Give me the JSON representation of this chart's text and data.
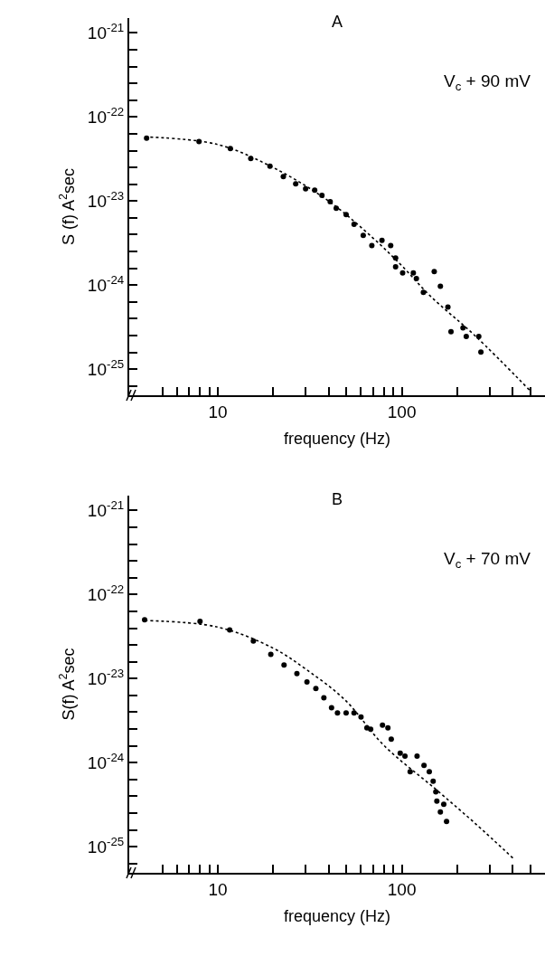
{
  "chart_data": [
    {
      "type": "scatter",
      "title": "A",
      "annotations": [
        "V$_{c}$ + 90 mV"
      ],
      "xlabel": "frequency (Hz)",
      "ylabel": "S (f) A$^{2}$sec",
      "log": "xy",
      "marker": "circle",
      "xlim": [
        3.3,
        600
      ],
      "xticks": [
        {
          "value": 5,
          "label": null
        },
        {
          "value": 6,
          "label": null
        },
        {
          "value": 7,
          "label": null
        },
        {
          "value": 8,
          "label": null
        },
        {
          "value": 9,
          "label": null
        },
        {
          "value": 10,
          "label": "10"
        },
        {
          "value": 20,
          "label": null
        },
        {
          "value": 30,
          "label": null
        },
        {
          "value": 40,
          "label": null
        },
        {
          "value": 50,
          "label": null
        },
        {
          "value": 60,
          "label": null
        },
        {
          "value": 70,
          "label": null
        },
        {
          "value": 80,
          "label": null
        },
        {
          "value": 90,
          "label": null
        },
        {
          "value": 100,
          "label": "100"
        },
        {
          "value": 200,
          "label": null
        },
        {
          "value": 300,
          "label": null
        },
        {
          "value": 400,
          "label": null
        },
        {
          "value": 500,
          "label": null
        }
      ],
      "ylim": [
        4.9e-26,
        1.5e-21
      ],
      "yticks": [
        {
          "value": 1e-21,
          "label": "10$^{-21}$"
        },
        {
          "value": 6.31e-22,
          "label": null
        },
        {
          "value": 3.98e-22,
          "label": null
        },
        {
          "value": 2.51e-22,
          "label": null
        },
        {
          "value": 1.58e-22,
          "label": null
        },
        {
          "value": 1e-22,
          "label": "10$^{-22}$"
        },
        {
          "value": 6.31e-23,
          "label": null
        },
        {
          "value": 3.98e-23,
          "label": null
        },
        {
          "value": 2.51e-23,
          "label": null
        },
        {
          "value": 1.58e-23,
          "label": null
        },
        {
          "value": 1e-23,
          "label": "10$^{-23}$"
        },
        {
          "value": 6.31e-24,
          "label": null
        },
        {
          "value": 3.98e-24,
          "label": null
        },
        {
          "value": 2.51e-24,
          "label": null
        },
        {
          "value": 1.58e-24,
          "label": null
        },
        {
          "value": 1e-24,
          "label": "10$^{-24}$"
        },
        {
          "value": 6.31e-25,
          "label": null
        },
        {
          "value": 3.98e-25,
          "label": null
        },
        {
          "value": 2.51e-25,
          "label": null
        },
        {
          "value": 1.58e-25,
          "label": null
        },
        {
          "value": 1e-25,
          "label": "10$^{-25}$"
        },
        {
          "value": 6.31e-26,
          "label": null
        }
      ],
      "series": [
        {
          "type": "scatter",
          "color": "#000000",
          "x": [
            4.1,
            7.9,
            11.7,
            15.1,
            19.2,
            22.7,
            26.5,
            30,
            33.6,
            36.8,
            40.8,
            44,
            49.8,
            55,
            61.7,
            68.7,
            78,
            87,
            92.5,
            92.5,
            101,
            115.5,
            120,
            131,
            150,
            162,
            178,
            185,
            215,
            224,
            262,
            269
          ],
          "values": [
            5.6e-23,
            5.1e-23,
            4.2e-23,
            3.2e-23,
            2.6e-23,
            1.95e-23,
            1.6e-23,
            1.4e-23,
            1.35e-23,
            1.17e-23,
            9.8e-24,
            8.2e-24,
            6.9e-24,
            5.3e-24,
            3.9e-24,
            2.95e-24,
            3.4e-24,
            2.95e-24,
            2.1e-24,
            1.65e-24,
            1.4e-24,
            1.4e-24,
            1.2e-24,
            8.2e-25,
            1.45e-24,
            9.7e-25,
            5.5e-25,
            2.8e-25,
            3.1e-25,
            2.45e-25,
            2.45e-25,
            1.6e-25
          ]
        },
        {
          "type": "line",
          "color": "#000000",
          "line_style": "dotted",
          "marker": "none",
          "x": [
            4,
            10,
            20,
            40,
            70,
            100,
            143,
            250,
            500
          ],
          "values": [
            5.8e-23,
            4.7e-23,
            2.5e-23,
            1e-23,
            3.6e-24,
            1.7e-24,
            7.4e-25,
            2.5e-25,
            5.5e-26
          ]
        }
      ]
    },
    {
      "type": "scatter",
      "title": "B",
      "annotations": [
        "V$_{c}$ + 70 mV"
      ],
      "xlabel": "frequency (Hz)",
      "ylabel": "S(f) A$^{2}$sec",
      "log": "xy",
      "marker": "circle",
      "xlim": [
        3.3,
        600
      ],
      "xticks": [
        {
          "value": 5,
          "label": null
        },
        {
          "value": 6,
          "label": null
        },
        {
          "value": 7,
          "label": null
        },
        {
          "value": 8,
          "label": null
        },
        {
          "value": 9,
          "label": null
        },
        {
          "value": 10,
          "label": "10"
        },
        {
          "value": 20,
          "label": null
        },
        {
          "value": 30,
          "label": null
        },
        {
          "value": 40,
          "label": null
        },
        {
          "value": 50,
          "label": null
        },
        {
          "value": 60,
          "label": null
        },
        {
          "value": 70,
          "label": null
        },
        {
          "value": 80,
          "label": null
        },
        {
          "value": 90,
          "label": null
        },
        {
          "value": 100,
          "label": "100"
        },
        {
          "value": 200,
          "label": null
        },
        {
          "value": 300,
          "label": null
        },
        {
          "value": 400,
          "label": null
        },
        {
          "value": 500,
          "label": null
        }
      ],
      "ylim": [
        4.9e-26,
        1.5e-21
      ],
      "yticks": [
        {
          "value": 1e-21,
          "label": "10$^{-21}$"
        },
        {
          "value": 6.31e-22,
          "label": null
        },
        {
          "value": 3.98e-22,
          "label": null
        },
        {
          "value": 2.51e-22,
          "label": null
        },
        {
          "value": 1.58e-22,
          "label": null
        },
        {
          "value": 1e-22,
          "label": "10$^{-22}$"
        },
        {
          "value": 6.31e-23,
          "label": null
        },
        {
          "value": 3.98e-23,
          "label": null
        },
        {
          "value": 2.51e-23,
          "label": null
        },
        {
          "value": 1.58e-23,
          "label": null
        },
        {
          "value": 1e-23,
          "label": "10$^{-23}$"
        },
        {
          "value": 6.31e-24,
          "label": null
        },
        {
          "value": 3.98e-24,
          "label": null
        },
        {
          "value": 2.51e-24,
          "label": null
        },
        {
          "value": 1.58e-24,
          "label": null
        },
        {
          "value": 1e-24,
          "label": "10$^{-24}$"
        },
        {
          "value": 6.31e-25,
          "label": null
        },
        {
          "value": 3.98e-25,
          "label": null
        },
        {
          "value": 2.51e-25,
          "label": null
        },
        {
          "value": 1.58e-25,
          "label": null
        },
        {
          "value": 1e-25,
          "label": "10$^{-25}$"
        },
        {
          "value": 6.31e-26,
          "label": null
        }
      ],
      "series": [
        {
          "type": "scatter",
          "color": "#000000",
          "x": [
            4.0,
            8.0,
            11.6,
            15.6,
            19.4,
            22.9,
            26.9,
            30.5,
            34.1,
            37.7,
            41.5,
            44.7,
            49.8,
            55,
            60,
            64.6,
            67.7,
            78.5,
            84,
            87.6,
            98,
            104,
            111,
            121,
            132,
            141,
            148,
            153,
            155,
            162,
            169,
            175
          ],
          "values": [
            5e-23,
            4.8e-23,
            3.8e-23,
            2.8e-23,
            1.94e-23,
            1.45e-23,
            1.15e-23,
            9.1e-24,
            7.6e-24,
            5.9e-24,
            4.5e-24,
            3.9e-24,
            3.9e-24,
            3.9e-24,
            3.5e-24,
            2.6e-24,
            2.5e-24,
            2.8e-24,
            2.6e-24,
            1.9e-24,
            1.3e-24,
            1.2e-24,
            7.8e-25,
            1.2e-24,
            9.3e-25,
            7.8e-25,
            6e-25,
            4.5e-25,
            3.5e-25,
            2.6e-25,
            3.2e-25,
            2e-25
          ]
        },
        {
          "type": "line",
          "color": "#000000",
          "line_style": "dotted",
          "marker": "none",
          "x": [
            4,
            10,
            20,
            30,
            49,
            80,
            150,
            250,
            408
          ],
          "values": [
            4.9e-23,
            4.1e-23,
            2.3e-23,
            1.3e-23,
            5.6e-24,
            1.6e-24,
            5e-25,
            1.9e-25,
            7.1e-26
          ]
        }
      ]
    }
  ]
}
